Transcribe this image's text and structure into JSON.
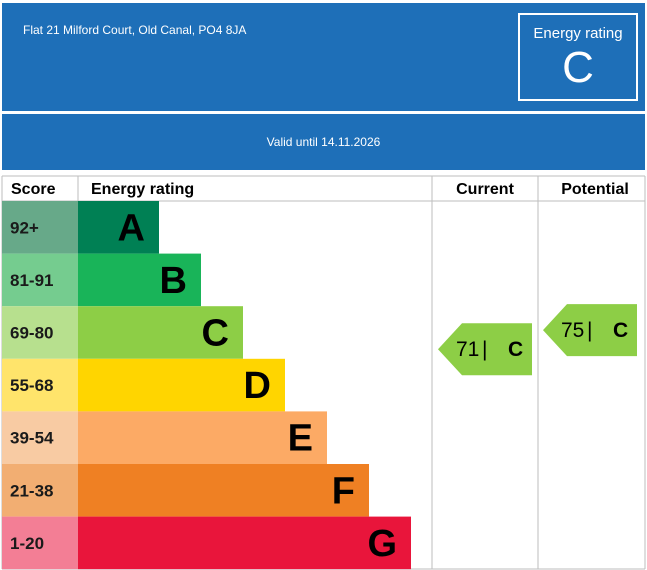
{
  "header": {
    "address": "Flat 21 Milford Court, Old Canal, PO4 8JA",
    "rating_label": "Energy rating",
    "rating_value": "C",
    "valid_until": "Valid until 14.11.2026"
  },
  "chart_data": {
    "type": "table",
    "columns": [
      "Score",
      "Energy rating",
      "Current",
      "Potential"
    ],
    "bands": [
      {
        "letter": "A",
        "score": "92+",
        "color": "#008054"
      },
      {
        "letter": "B",
        "score": "81-91",
        "color": "#19b459"
      },
      {
        "letter": "C",
        "score": "69-80",
        "color": "#8dce46"
      },
      {
        "letter": "D",
        "score": "55-68",
        "color": "#ffd500"
      },
      {
        "letter": "E",
        "score": "39-54",
        "color": "#fcaa65"
      },
      {
        "letter": "F",
        "score": "21-38",
        "color": "#ef8023"
      },
      {
        "letter": "G",
        "score": "1-20",
        "color": "#e9153b"
      }
    ],
    "score_cell_colors": [
      "#67a989",
      "#75cc8f",
      "#b7e08e",
      "#ffe46b",
      "#f8cba3",
      "#f2ae72",
      "#f37e95"
    ],
    "current": {
      "value": 71,
      "letter": "C",
      "color": "#8dce46"
    },
    "potential": {
      "value": 75,
      "letter": "C",
      "color": "#8dce46"
    }
  }
}
